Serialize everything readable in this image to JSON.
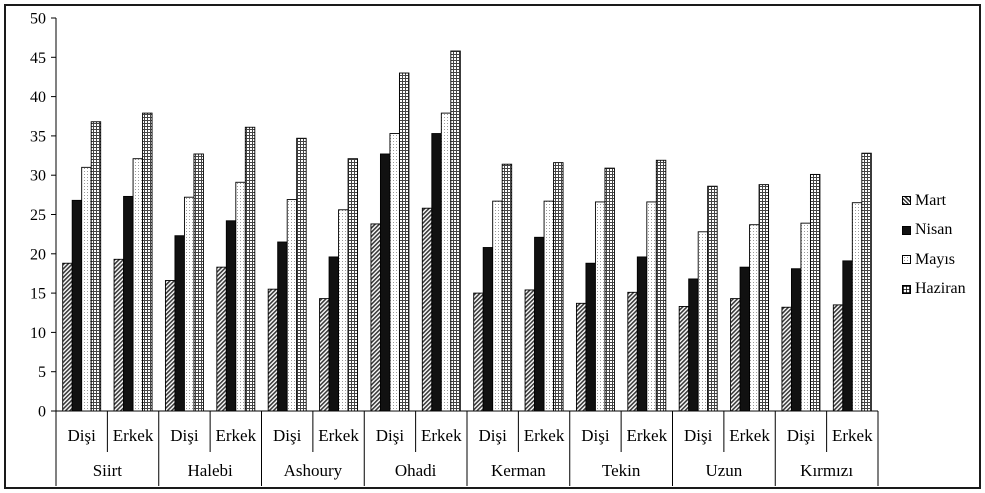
{
  "chart_data": {
    "type": "bar",
    "title": "",
    "xlabel": "",
    "ylabel": "",
    "ylim": [
      0,
      50
    ],
    "yticks": [
      0,
      5,
      10,
      15,
      20,
      25,
      30,
      35,
      40,
      45,
      50
    ],
    "groups": [
      "Siirt",
      "Halebi",
      "Ashoury",
      "Ohadi",
      "Kerman",
      "Tekin",
      "Uzun",
      "Kırmızı"
    ],
    "subcategories": [
      "Dişi",
      "Erkek"
    ],
    "series": [
      {
        "name": "Mart",
        "values": [
          18.8,
          19.3,
          16.6,
          18.3,
          15.5,
          14.3,
          23.8,
          25.8,
          15.0,
          15.4,
          13.7,
          15.1,
          13.3,
          14.3,
          13.2,
          13.5
        ]
      },
      {
        "name": "Nisan",
        "values": [
          26.8,
          27.3,
          22.3,
          24.2,
          21.5,
          19.6,
          32.7,
          35.3,
          20.8,
          22.1,
          18.8,
          19.6,
          16.8,
          18.3,
          18.1,
          19.1
        ]
      },
      {
        "name": "Mayıs",
        "values": [
          31.0,
          32.1,
          27.2,
          29.1,
          26.9,
          25.6,
          35.3,
          37.9,
          26.7,
          26.7,
          26.6,
          26.6,
          22.8,
          23.7,
          23.9,
          26.5
        ]
      },
      {
        "name": "Haziran",
        "values": [
          36.8,
          37.9,
          32.7,
          36.1,
          34.7,
          32.1,
          43.0,
          45.8,
          31.4,
          31.6,
          30.9,
          31.9,
          28.6,
          28.8,
          30.1,
          32.8
        ]
      }
    ],
    "legend_position": "right",
    "grid": false
  },
  "colors": {
    "Mart": "#7a7a7a",
    "Nisan": "#111111",
    "Mayıs": "#f4f4f4",
    "Haziran": "#8c8c8c"
  }
}
